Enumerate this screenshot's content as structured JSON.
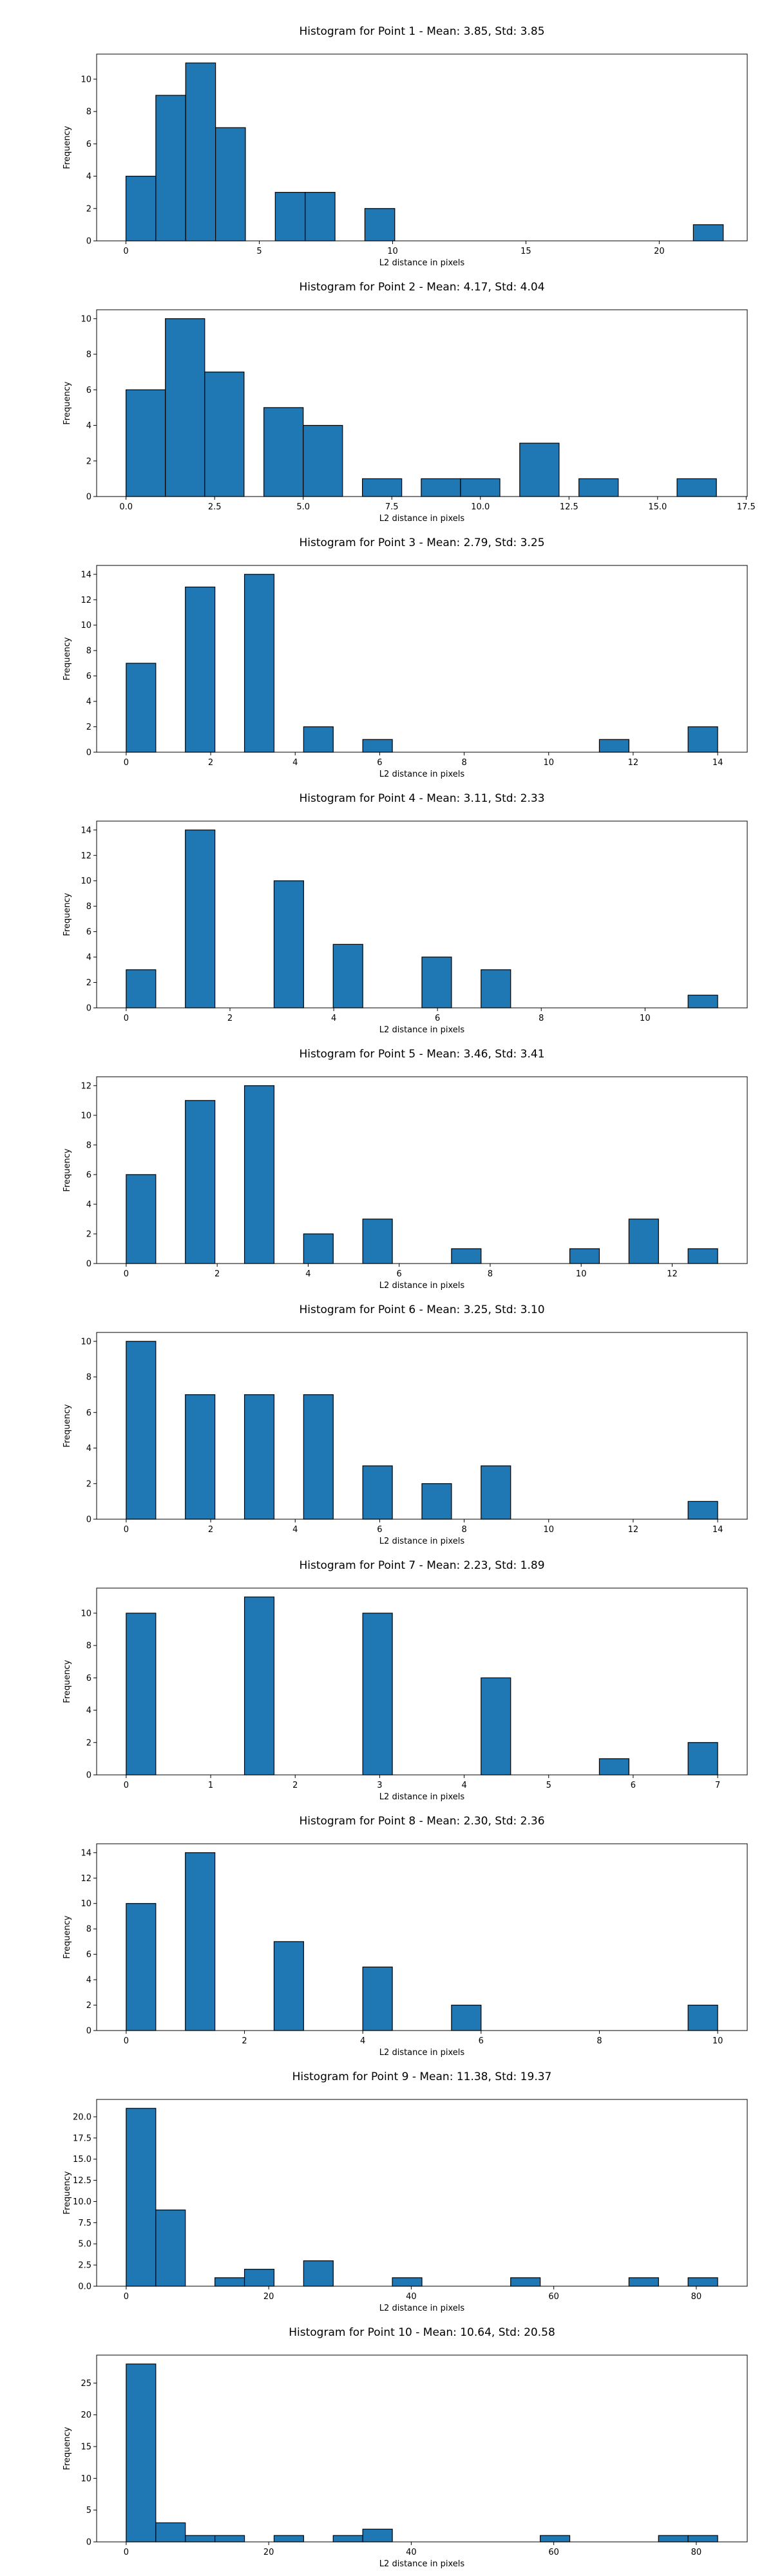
{
  "chart_data": [
    {
      "type": "bar",
      "title": "Histogram for Point 1 - Mean: 3.85, Std: 3.85",
      "xlabel": "L2 distance in pixels",
      "ylabel": "Frequency",
      "xlim": [
        -1.1,
        23.3
      ],
      "ylim": [
        0,
        11.55
      ],
      "xticks": [
        0,
        5,
        10,
        15,
        20
      ],
      "yticks": [
        0,
        2,
        4,
        6,
        8,
        10
      ],
      "bin_width": 1.12,
      "bins": [
        {
          "x0": 0.0,
          "x1": 1.12,
          "value": 4
        },
        {
          "x0": 1.12,
          "x1": 2.24,
          "value": 9
        },
        {
          "x0": 2.24,
          "x1": 3.36,
          "value": 11
        },
        {
          "x0": 3.36,
          "x1": 4.48,
          "value": 7
        },
        {
          "x0": 5.6,
          "x1": 6.72,
          "value": 3
        },
        {
          "x0": 6.72,
          "x1": 7.84,
          "value": 3
        },
        {
          "x0": 8.96,
          "x1": 10.08,
          "value": 2
        },
        {
          "x0": 21.28,
          "x1": 22.4,
          "value": 1
        }
      ],
      "grid": false
    },
    {
      "type": "bar",
      "title": "Histogram for Point 2 - Mean: 4.17, Std: 4.04",
      "xlabel": "L2 distance in pixels",
      "ylabel": "Frequency",
      "xlim": [
        -0.83,
        17.53
      ],
      "ylim": [
        0,
        10.5
      ],
      "xticks": [
        0.0,
        2.5,
        5.0,
        7.5,
        10.0,
        12.5,
        15.0,
        17.5
      ],
      "xtick_labels": [
        "0.0",
        "2.5",
        "5.0",
        "7.5",
        "10.0",
        "12.5",
        "15.0",
        "17.5"
      ],
      "yticks": [
        0,
        2,
        4,
        6,
        8,
        10
      ],
      "bins": [
        {
          "x0": 0.0,
          "x1": 1.11,
          "value": 6
        },
        {
          "x0": 1.11,
          "x1": 2.22,
          "value": 10
        },
        {
          "x0": 2.22,
          "x1": 3.33,
          "value": 7
        },
        {
          "x0": 3.89,
          "x1": 5.0,
          "value": 5
        },
        {
          "x0": 5.0,
          "x1": 6.11,
          "value": 4
        },
        {
          "x0": 6.67,
          "x1": 7.78,
          "value": 1
        },
        {
          "x0": 8.33,
          "x1": 9.44,
          "value": 1
        },
        {
          "x0": 9.44,
          "x1": 10.55,
          "value": 1
        },
        {
          "x0": 11.11,
          "x1": 12.22,
          "value": 3
        },
        {
          "x0": 12.78,
          "x1": 13.89,
          "value": 1
        },
        {
          "x0": 15.55,
          "x1": 16.66,
          "value": 1
        }
      ],
      "grid": false
    },
    {
      "type": "bar",
      "title": "Histogram for Point 3 - Mean: 2.79, Std: 3.25",
      "xlabel": "L2 distance in pixels",
      "ylabel": "Frequency",
      "xlim": [
        -0.7,
        14.7
      ],
      "ylim": [
        0,
        14.7
      ],
      "xticks": [
        0,
        2,
        4,
        6,
        8,
        10,
        12,
        14
      ],
      "yticks": [
        0,
        2,
        4,
        6,
        8,
        10,
        12,
        14
      ],
      "bins": [
        {
          "x0": 0.0,
          "x1": 0.7,
          "value": 7
        },
        {
          "x0": 1.4,
          "x1": 2.1,
          "value": 13
        },
        {
          "x0": 2.8,
          "x1": 3.5,
          "value": 14
        },
        {
          "x0": 4.2,
          "x1": 4.9,
          "value": 2
        },
        {
          "x0": 5.6,
          "x1": 6.3,
          "value": 1
        },
        {
          "x0": 11.2,
          "x1": 11.9,
          "value": 1
        },
        {
          "x0": 13.3,
          "x1": 14.0,
          "value": 2
        }
      ],
      "grid": false
    },
    {
      "type": "bar",
      "title": "Histogram for Point 4 - Mean: 3.11, Std: 2.33",
      "xlabel": "L2 distance in pixels",
      "ylabel": "Frequency",
      "xlim": [
        -0.57,
        11.97
      ],
      "ylim": [
        0,
        14.7
      ],
      "xticks": [
        0,
        2,
        4,
        6,
        8,
        10
      ],
      "yticks": [
        0,
        2,
        4,
        6,
        8,
        10,
        12,
        14
      ],
      "bins": [
        {
          "x0": 0.0,
          "x1": 0.57,
          "value": 3
        },
        {
          "x0": 1.14,
          "x1": 1.71,
          "value": 14
        },
        {
          "x0": 2.85,
          "x1": 3.42,
          "value": 10
        },
        {
          "x0": 3.99,
          "x1": 4.56,
          "value": 5
        },
        {
          "x0": 5.7,
          "x1": 6.27,
          "value": 4
        },
        {
          "x0": 6.84,
          "x1": 7.41,
          "value": 3
        },
        {
          "x0": 10.83,
          "x1": 11.4,
          "value": 1
        }
      ],
      "grid": false
    },
    {
      "type": "bar",
      "title": "Histogram for Point 5 - Mean: 3.46, Std: 3.41",
      "xlabel": "L2 distance in pixels",
      "ylabel": "Frequency",
      "xlim": [
        -0.65,
        13.65
      ],
      "ylim": [
        0,
        12.6
      ],
      "xticks": [
        0,
        2,
        4,
        6,
        8,
        10,
        12
      ],
      "yticks": [
        0,
        2,
        4,
        6,
        8,
        10,
        12
      ],
      "bins": [
        {
          "x0": 0.0,
          "x1": 0.65,
          "value": 6
        },
        {
          "x0": 1.3,
          "x1": 1.95,
          "value": 11
        },
        {
          "x0": 2.6,
          "x1": 3.25,
          "value": 12
        },
        {
          "x0": 3.9,
          "x1": 4.55,
          "value": 2
        },
        {
          "x0": 5.2,
          "x1": 5.85,
          "value": 3
        },
        {
          "x0": 7.15,
          "x1": 7.8,
          "value": 1
        },
        {
          "x0": 9.75,
          "x1": 10.4,
          "value": 1
        },
        {
          "x0": 11.05,
          "x1": 11.7,
          "value": 3
        },
        {
          "x0": 12.35,
          "x1": 13.0,
          "value": 1
        }
      ],
      "grid": false
    },
    {
      "type": "bar",
      "title": "Histogram for Point 6 - Mean: 3.25, Std: 3.10",
      "xlabel": "L2 distance in pixels",
      "ylabel": "Frequency",
      "xlim": [
        -0.7,
        14.7
      ],
      "ylim": [
        0,
        10.5
      ],
      "xticks": [
        0,
        2,
        4,
        6,
        8,
        10,
        12,
        14
      ],
      "yticks": [
        0,
        2,
        4,
        6,
        8,
        10
      ],
      "bins": [
        {
          "x0": 0.0,
          "x1": 0.7,
          "value": 10
        },
        {
          "x0": 1.4,
          "x1": 2.1,
          "value": 7
        },
        {
          "x0": 2.8,
          "x1": 3.5,
          "value": 7
        },
        {
          "x0": 4.2,
          "x1": 4.9,
          "value": 7
        },
        {
          "x0": 5.6,
          "x1": 6.3,
          "value": 3
        },
        {
          "x0": 7.0,
          "x1": 7.7,
          "value": 2
        },
        {
          "x0": 8.4,
          "x1": 9.1,
          "value": 3
        },
        {
          "x0": 13.3,
          "x1": 14.0,
          "value": 1
        }
      ],
      "grid": false
    },
    {
      "type": "bar",
      "title": "Histogram for Point 7 - Mean: 2.23, Std: 1.89",
      "xlabel": "L2 distance in pixels",
      "ylabel": "Frequency",
      "xlim": [
        -0.35,
        7.35
      ],
      "ylim": [
        0,
        11.55
      ],
      "xticks": [
        0,
        1,
        2,
        3,
        4,
        5,
        6,
        7
      ],
      "yticks": [
        0,
        2,
        4,
        6,
        8,
        10
      ],
      "bins": [
        {
          "x0": 0.0,
          "x1": 0.35,
          "value": 10
        },
        {
          "x0": 1.4,
          "x1": 1.75,
          "value": 11
        },
        {
          "x0": 2.8,
          "x1": 3.15,
          "value": 10
        },
        {
          "x0": 4.2,
          "x1": 4.55,
          "value": 6
        },
        {
          "x0": 5.6,
          "x1": 5.95,
          "value": 1
        },
        {
          "x0": 6.65,
          "x1": 7.0,
          "value": 2
        }
      ],
      "grid": false
    },
    {
      "type": "bar",
      "title": "Histogram for Point 8 - Mean: 2.30, Std: 2.36",
      "xlabel": "L2 distance in pixels",
      "ylabel": "Frequency",
      "xlim": [
        -0.5,
        10.5
      ],
      "ylim": [
        0,
        14.7
      ],
      "xticks": [
        0,
        2,
        4,
        6,
        8,
        10
      ],
      "yticks": [
        0,
        2,
        4,
        6,
        8,
        10,
        12,
        14
      ],
      "bins": [
        {
          "x0": 0.0,
          "x1": 0.5,
          "value": 10
        },
        {
          "x0": 1.0,
          "x1": 1.5,
          "value": 14
        },
        {
          "x0": 2.5,
          "x1": 3.0,
          "value": 7
        },
        {
          "x0": 4.0,
          "x1": 4.5,
          "value": 5
        },
        {
          "x0": 5.5,
          "x1": 6.0,
          "value": 2
        },
        {
          "x0": 9.5,
          "x1": 10.0,
          "value": 2
        }
      ],
      "grid": false
    },
    {
      "type": "bar",
      "title": "Histogram for Point 9 - Mean: 11.38, Std: 19.37",
      "xlabel": "L2 distance in pixels",
      "ylabel": "Frequency",
      "xlim": [
        -4.15,
        87.15
      ],
      "ylim": [
        0,
        22.05
      ],
      "xticks": [
        0,
        20,
        40,
        60,
        80
      ],
      "yticks": [
        0,
        2.5,
        5,
        7.5,
        10,
        12.5,
        15,
        17.5,
        20
      ],
      "ytick_labels": [
        "0.0",
        "2.5",
        "5.0",
        "7.5",
        "10.0",
        "12.5",
        "15.0",
        "17.5",
        "20.0"
      ],
      "bins": [
        {
          "x0": 0.0,
          "x1": 4.15,
          "value": 21
        },
        {
          "x0": 4.15,
          "x1": 8.3,
          "value": 9
        },
        {
          "x0": 12.45,
          "x1": 16.6,
          "value": 1
        },
        {
          "x0": 16.6,
          "x1": 20.75,
          "value": 2
        },
        {
          "x0": 24.9,
          "x1": 29.05,
          "value": 3
        },
        {
          "x0": 37.35,
          "x1": 41.5,
          "value": 1
        },
        {
          "x0": 53.95,
          "x1": 58.1,
          "value": 1
        },
        {
          "x0": 70.55,
          "x1": 74.7,
          "value": 1
        },
        {
          "x0": 78.85,
          "x1": 83.0,
          "value": 1
        }
      ],
      "grid": false
    },
    {
      "type": "bar",
      "title": "Histogram for Point 10 - Mean: 10.64, Std: 20.58",
      "xlabel": "L2 distance in pixels",
      "ylabel": "Frequency",
      "xlim": [
        -4.15,
        87.15
      ],
      "ylim": [
        0,
        29.4
      ],
      "xticks": [
        0,
        20,
        40,
        60,
        80
      ],
      "yticks": [
        0,
        5,
        10,
        15,
        20,
        25
      ],
      "bins": [
        {
          "x0": 0.0,
          "x1": 4.15,
          "value": 28
        },
        {
          "x0": 4.15,
          "x1": 8.3,
          "value": 3
        },
        {
          "x0": 8.3,
          "x1": 12.45,
          "value": 1
        },
        {
          "x0": 12.45,
          "x1": 16.6,
          "value": 1
        },
        {
          "x0": 20.75,
          "x1": 24.9,
          "value": 1
        },
        {
          "x0": 29.05,
          "x1": 33.2,
          "value": 1
        },
        {
          "x0": 33.2,
          "x1": 37.35,
          "value": 2
        },
        {
          "x0": 58.1,
          "x1": 62.25,
          "value": 1
        },
        {
          "x0": 74.7,
          "x1": 78.85,
          "value": 1
        },
        {
          "x0": 78.85,
          "x1": 83.0,
          "value": 1
        }
      ],
      "grid": false
    }
  ]
}
